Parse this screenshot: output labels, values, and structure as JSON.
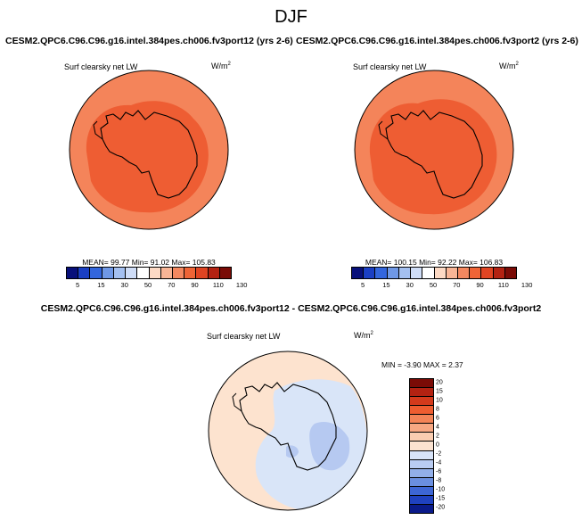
{
  "season": "DJF",
  "panels": [
    {
      "title": "CESM2.QPC6.C96.C96.g16.intel.384pes.ch006.fv3port12 (yrs 2-6)",
      "variable": "Surf clearsky net LW",
      "units_base": "W/m",
      "units_exp": "2",
      "stats": "MEAN=  99.77   Min=  91.02   Max= 105.83",
      "colorbar_ticks": [
        "5",
        "15",
        "30",
        "50",
        "70",
        "90",
        "110",
        "130"
      ]
    },
    {
      "title": "CESM2.QPC6.C96.C96.g16.intel.384pes.ch006.fv3port2 (yrs 2-6)",
      "variable": "Surf clearsky net LW",
      "units_base": "W/m",
      "units_exp": "2",
      "stats": "MEAN= 100.15   Min=  92.22   Max= 106.83",
      "colorbar_ticks": [
        "5",
        "15",
        "30",
        "50",
        "70",
        "90",
        "110",
        "130"
      ]
    }
  ],
  "diff": {
    "title": "CESM2.QPC6.C96.C96.g16.intel.384pes.ch006.fv3port12 - CESM2.QPC6.C96.C96.g16.intel.384pes.ch006.fv3port2",
    "variable": "Surf clearsky net LW",
    "units_base": "W/m",
    "units_exp": "2",
    "stats": "MIN =  -3.90  MAX =   2.37",
    "colorbar_ticks": [
      "20",
      "15",
      "10",
      "8",
      "6",
      "4",
      "2",
      "0",
      "-2",
      "-4",
      "-6",
      "-8",
      "-10",
      "-15",
      "-20"
    ]
  },
  "colors": {
    "abs_levels": [
      "#08107a",
      "#1a3fc4",
      "#3366dd",
      "#6f98e6",
      "#a4c0f0",
      "#cfddf7",
      "#ffffff",
      "#fcd9c4",
      "#f8b596",
      "#f48860",
      "#ef6436",
      "#e04422",
      "#b32212",
      "#7a0b06"
    ],
    "diff_levels": [
      "#7a0b06",
      "#b32212",
      "#d43a1c",
      "#ef5d30",
      "#f48457",
      "#f7a883",
      "#facdb1",
      "#fbe2d0",
      "#d7e3f8",
      "#b9ccf2",
      "#92afe9",
      "#6a8fe0",
      "#3d66d5",
      "#1f41c0",
      "#0a1a8a"
    ],
    "map_outer": "#f4845a",
    "map_inner": "#ee5d33",
    "diff_base": "#fde3cf",
    "diff_neg1": "#d9e5f8",
    "diff_neg2": "#b6c9f1"
  }
}
